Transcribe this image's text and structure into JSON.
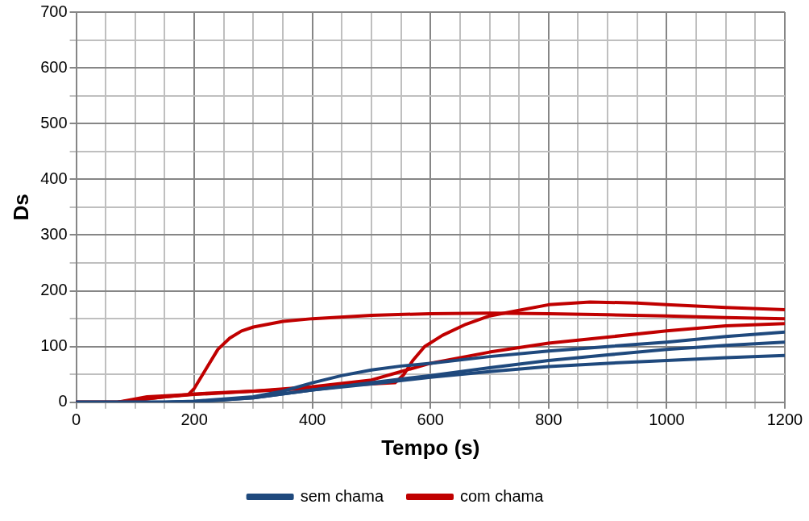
{
  "chart_data": {
    "type": "line",
    "xlabel": "Tempo (s)",
    "ylabel": "Ds",
    "xlim": [
      0,
      1200
    ],
    "ylim": [
      0,
      700
    ],
    "xticks": [
      0,
      {
        "value": 50,
        "label": null
      },
      {
        "value": 100,
        "label": null
      },
      {
        "value": 150,
        "label": null
      },
      200,
      {
        "value": 250,
        "label": null
      },
      {
        "value": 300,
        "label": null
      },
      {
        "value": 350,
        "label": null
      },
      400,
      {
        "value": 450,
        "label": null
      },
      {
        "value": 500,
        "label": null
      },
      {
        "value": 550,
        "label": null
      },
      600,
      {
        "value": 650,
        "label": null
      },
      {
        "value": 700,
        "label": null
      },
      {
        "value": 750,
        "label": null
      },
      800,
      {
        "value": 850,
        "label": null
      },
      {
        "value": 900,
        "label": null
      },
      {
        "value": 950,
        "label": null
      },
      1000,
      {
        "value": 1050,
        "label": null
      },
      {
        "value": 1100,
        "label": null
      },
      {
        "value": 1150,
        "label": null
      },
      1200
    ],
    "yticks": [
      0,
      {
        "value": 50,
        "label": null
      },
      100,
      {
        "value": 150,
        "label": null
      },
      200,
      {
        "value": 250,
        "label": null
      },
      300,
      {
        "value": 350,
        "label": null
      },
      400,
      {
        "value": 450,
        "label": null
      },
      500,
      {
        "value": 550,
        "label": null
      },
      600,
      {
        "value": 650,
        "label": null
      },
      700
    ],
    "grid": true,
    "legend": "bottom",
    "marker": "none",
    "line_style": "solid",
    "series": [
      {
        "name": "sem chama",
        "color": "#1f497d",
        "x": [
          0,
          150,
          200,
          300,
          350,
          400,
          450,
          500,
          550,
          600,
          700,
          800,
          900,
          1000,
          1100,
          1200
        ],
        "values": [
          0,
          0,
          2,
          10,
          20,
          35,
          48,
          58,
          65,
          70,
          82,
          92,
          100,
          108,
          118,
          126
        ]
      },
      {
        "color": "#1f497d",
        "x": [
          0,
          150,
          200,
          300,
          400,
          500,
          600,
          700,
          800,
          900,
          1000,
          1100,
          1200
        ],
        "values": [
          0,
          0,
          1,
          8,
          22,
          35,
          48,
          62,
          75,
          85,
          95,
          102,
          108
        ]
      },
      {
        "color": "#1f497d",
        "x": [
          0,
          150,
          200,
          300,
          400,
          500,
          600,
          700,
          800,
          900,
          1000,
          1100,
          1200
        ],
        "values": [
          0,
          0,
          1,
          8,
          22,
          33,
          45,
          55,
          64,
          70,
          75,
          80,
          84
        ]
      },
      {
        "name": "com chama",
        "color": "#c00000",
        "x": [
          0,
          70,
          120,
          190,
          200,
          220,
          240,
          260,
          280,
          300,
          350,
          400,
          500,
          600,
          700,
          800,
          900,
          1000,
          1100,
          1200
        ],
        "values": [
          0,
          0,
          10,
          14,
          25,
          60,
          95,
          115,
          128,
          135,
          145,
          150,
          156,
          159,
          160,
          159,
          157,
          155,
          152,
          150
        ]
      },
      {
        "color": "#c00000",
        "x": [
          0,
          70,
          150,
          200,
          300,
          400,
          450,
          500,
          540,
          555,
          570,
          590,
          620,
          660,
          700,
          750,
          800,
          870,
          950,
          1000,
          1100,
          1200
        ],
        "values": [
          0,
          0,
          10,
          15,
          20,
          25,
          30,
          33,
          35,
          50,
          75,
          100,
          120,
          140,
          155,
          165,
          175,
          180,
          178,
          175,
          170,
          166
        ]
      },
      {
        "color": "#c00000",
        "x": [
          0,
          70,
          150,
          200,
          300,
          400,
          500,
          550,
          600,
          700,
          800,
          900,
          1000,
          1100,
          1200
        ],
        "values": [
          0,
          0,
          10,
          14,
          20,
          28,
          40,
          55,
          70,
          90,
          106,
          117,
          128,
          137,
          141
        ]
      }
    ]
  }
}
